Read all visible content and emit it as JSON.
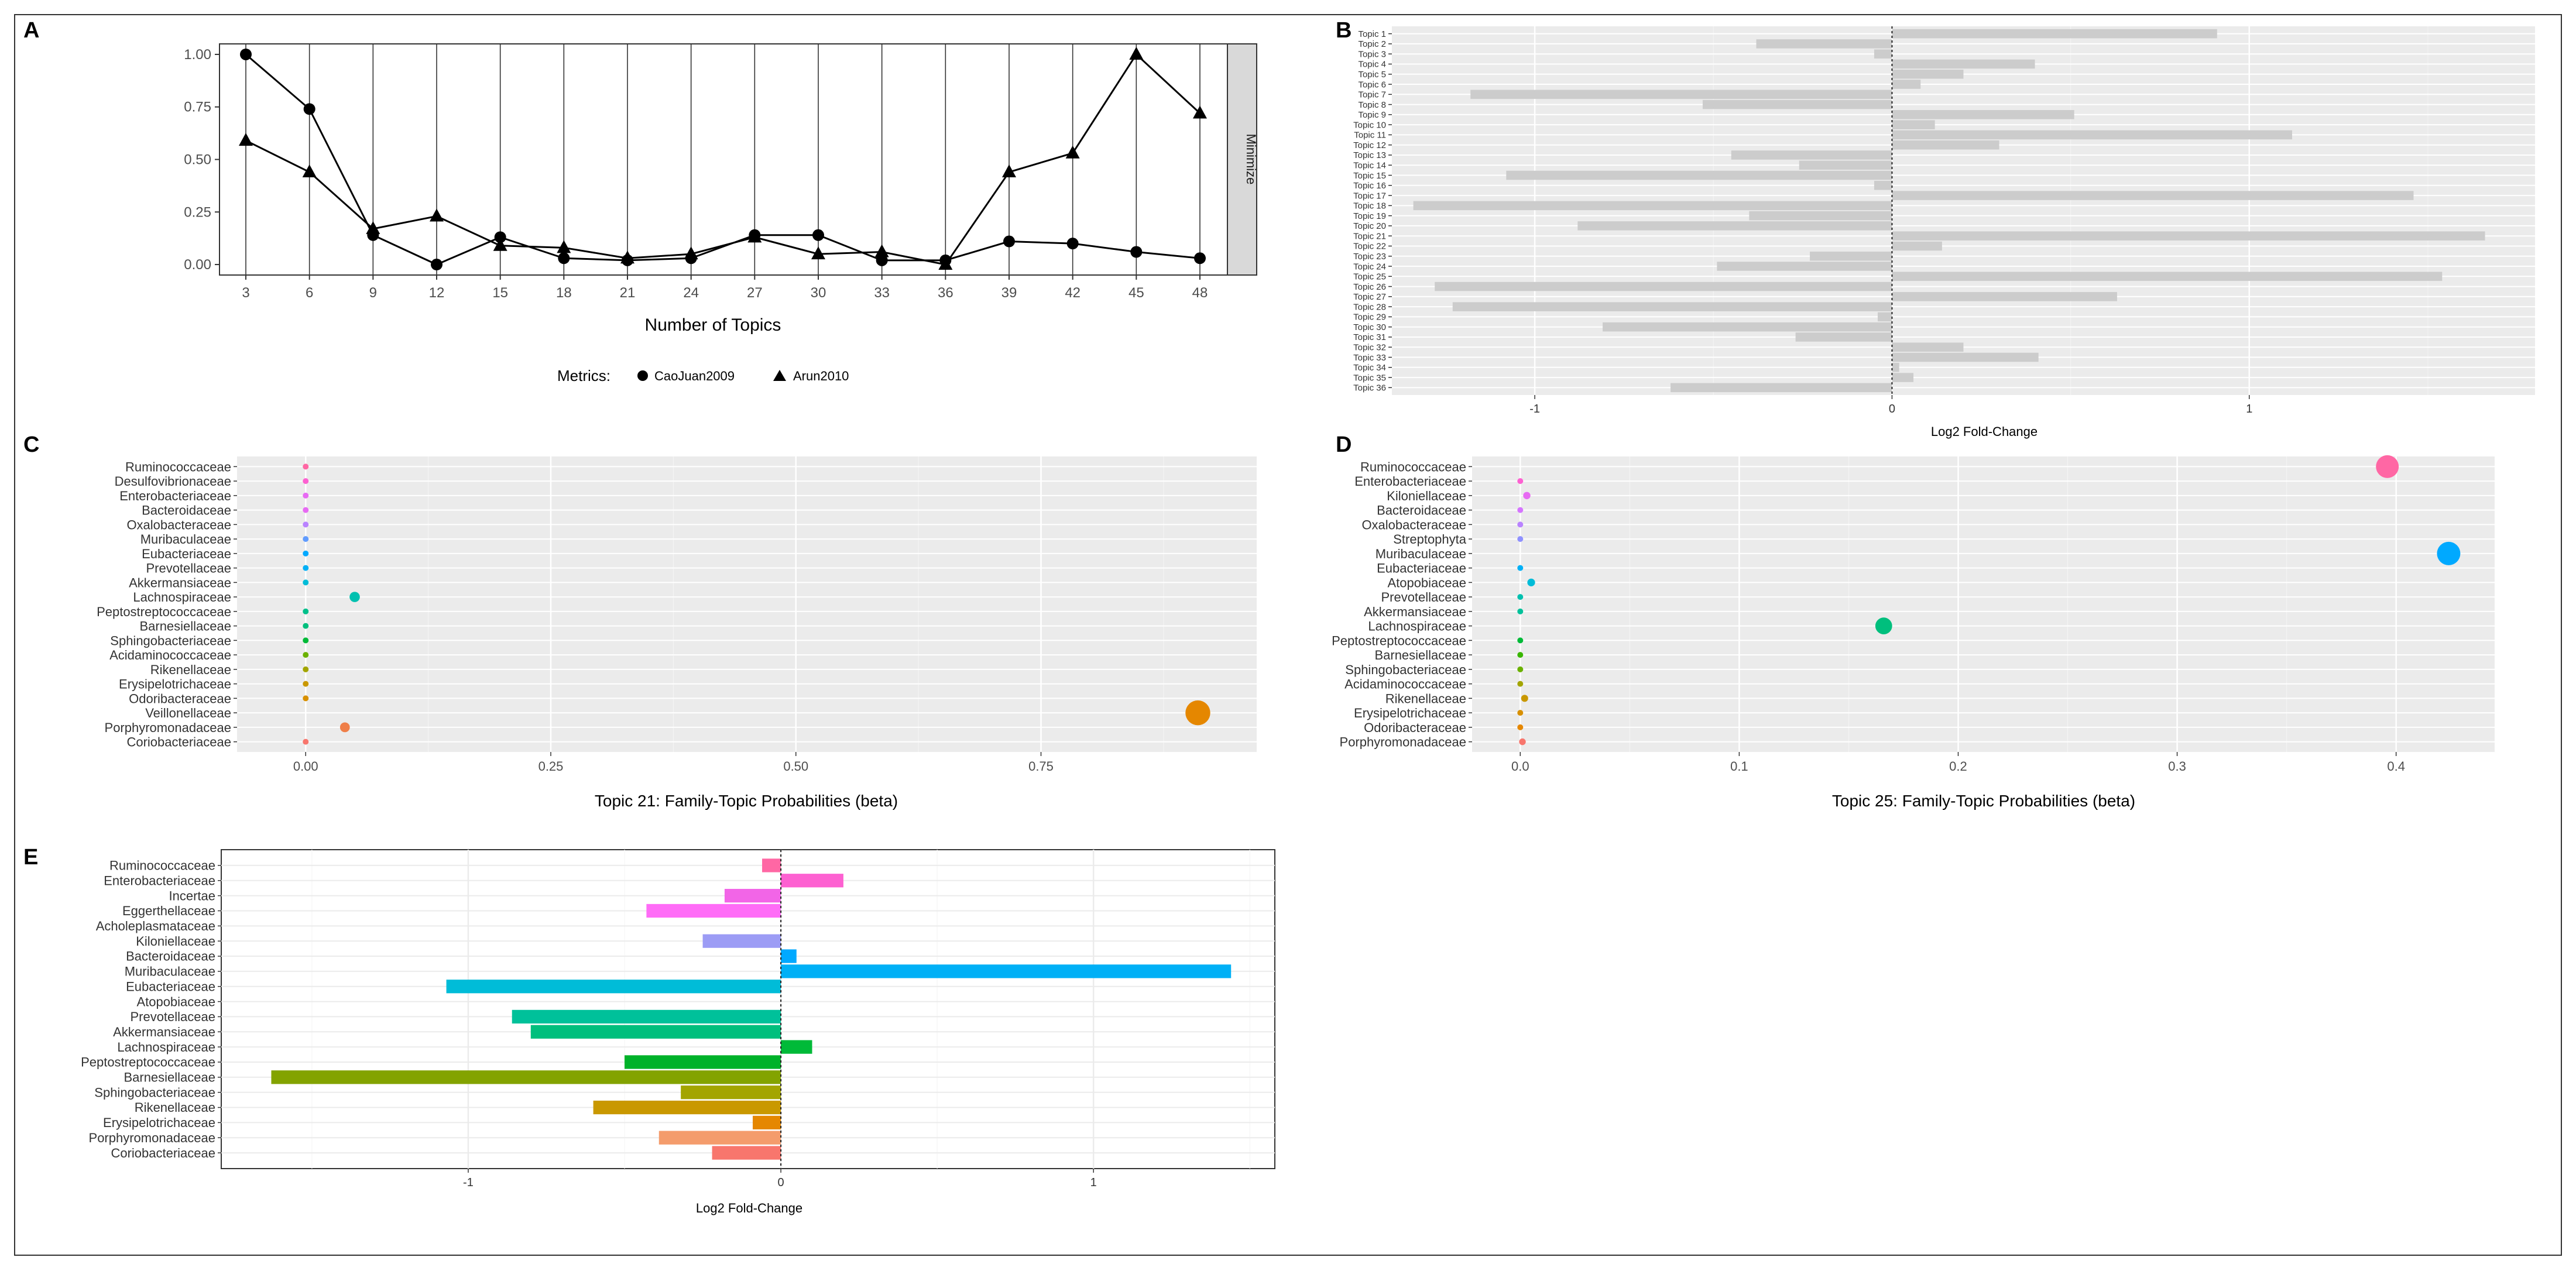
{
  "panel_letters": [
    "A",
    "B",
    "C",
    "D",
    "E"
  ],
  "palette": [
    "#f8766d",
    "#e58700",
    "#c99800",
    "#a3a500",
    "#6bb100",
    "#00ba38",
    "#00bf7d",
    "#00c0af",
    "#00bcd8",
    "#00b0f6",
    "#619cff",
    "#b983ff",
    "#e76bf3",
    "#fd61d1",
    "#ff67a4"
  ],
  "chart_data": [
    {
      "id": "A",
      "type": "line",
      "title": "",
      "xlabel": "Number of Topics",
      "ylabel": "",
      "x": [
        3,
        6,
        9,
        12,
        15,
        18,
        21,
        24,
        27,
        30,
        33,
        36,
        39,
        42,
        45,
        48
      ],
      "ylim": [
        -0.05,
        1.05
      ],
      "yticks": [
        "0.00",
        "0.25",
        "0.50",
        "0.75",
        "1.00"
      ],
      "strip_label": "Minimize",
      "legend_title": "Metrics:",
      "legend_position": "bottom",
      "series": [
        {
          "name": "CaoJuan2009",
          "marker": "circle",
          "values": [
            1.0,
            0.74,
            0.14,
            0.0,
            0.13,
            0.03,
            0.02,
            0.03,
            0.14,
            0.14,
            0.02,
            0.02,
            0.11,
            0.1,
            0.06,
            0.03
          ]
        },
        {
          "name": "Arun2010",
          "marker": "triangle",
          "values": [
            0.59,
            0.44,
            0.17,
            0.23,
            0.09,
            0.08,
            0.03,
            0.05,
            0.13,
            0.05,
            0.06,
            0.0,
            0.44,
            0.53,
            1.0,
            0.72
          ]
        }
      ]
    },
    {
      "id": "B",
      "type": "bar",
      "orientation": "horizontal",
      "xlabel": "Log2 Fold-Change",
      "ylabel": "",
      "xlim": [
        -1.4,
        1.8
      ],
      "xticks": [
        "-1",
        "0",
        "1"
      ],
      "categories": [
        "Topic 1",
        "Topic 2",
        "Topic 3",
        "Topic 4",
        "Topic 5",
        "Topic 6",
        "Topic 7",
        "Topic 8",
        "Topic 9",
        "Topic 10",
        "Topic 11",
        "Topic 12",
        "Topic 13",
        "Topic 14",
        "Topic 15",
        "Topic 16",
        "Topic 17",
        "Topic 18",
        "Topic 19",
        "Topic 20",
        "Topic 21",
        "Topic 22",
        "Topic 23",
        "Topic 24",
        "Topic 25",
        "Topic 26",
        "Topic 27",
        "Topic 28",
        "Topic 29",
        "Topic 30",
        "Topic 31",
        "Topic 32",
        "Topic 33",
        "Topic 34",
        "Topic 35",
        "Topic 36"
      ],
      "values": [
        0.91,
        -0.38,
        -0.05,
        0.4,
        0.2,
        0.08,
        -1.18,
        -0.53,
        0.51,
        0.12,
        1.12,
        0.3,
        -0.45,
        -0.26,
        -1.08,
        -0.05,
        1.46,
        -1.34,
        -0.4,
        -0.88,
        1.66,
        0.14,
        -0.23,
        -0.49,
        1.54,
        -1.28,
        0.63,
        -1.23,
        -0.04,
        -0.81,
        -0.27,
        0.2,
        0.41,
        0.02,
        0.06,
        -0.62
      ]
    },
    {
      "id": "C",
      "type": "scatter",
      "xlabel": "Topic 21: Family-Topic Probabilities (beta)",
      "ylabel": "",
      "xlim": [
        -0.07,
        0.97
      ],
      "xticks": [
        0.0,
        0.25,
        0.5,
        0.75
      ],
      "xtick_labels": [
        "0.00",
        "0.25",
        "0.50",
        "0.75"
      ],
      "categories": [
        "Ruminococcaceae",
        "Desulfovibrionaceae",
        "Enterobacteriaceae",
        "Bacteroidaceae",
        "Oxalobacteraceae",
        "Muribaculaceae",
        "Eubacteriaceae",
        "Prevotellaceae",
        "Akkermansiaceae",
        "Lachnospiraceae",
        "Peptostreptococcaceae",
        "Barnesiellaceae",
        "Sphingobacteriaceae",
        "Acidaminococcaceae",
        "Rikenellaceae",
        "Erysipelotrichaceae",
        "Odoribacteraceae",
        "Veillonellaceae",
        "Porphyromonadaceae",
        "Coriobacteriaceae"
      ],
      "values": [
        0.0,
        0.0,
        0.0,
        0.0,
        0.0,
        0.0,
        0.0,
        0.0,
        0.0,
        0.05,
        0.0,
        0.0,
        0.0,
        0.0,
        0.0,
        0.0,
        0.0,
        0.91,
        0.04,
        0.0
      ],
      "colors": [
        "#ff67a4",
        "#fd61d1",
        "#e76bf3",
        "#e76bf3",
        "#b983ff",
        "#619cff",
        "#00a9ff",
        "#00b0f6",
        "#00bcd8",
        "#00c0af",
        "#00c08b",
        "#00bf7d",
        "#00ba38",
        "#6bb100",
        "#a3a500",
        "#c99800",
        "#d89000",
        "#e58700",
        "#ef7f49",
        "#f8766d"
      ]
    },
    {
      "id": "D",
      "type": "scatter",
      "xlabel": "Topic 25: Family-Topic Probabilities (beta)",
      "ylabel": "",
      "xlim": [
        -0.022,
        0.445
      ],
      "xticks": [
        0.0,
        0.1,
        0.2,
        0.3,
        0.4
      ],
      "xtick_labels": [
        "0.0",
        "0.1",
        "0.2",
        "0.3",
        "0.4"
      ],
      "categories": [
        "Ruminococcaceae",
        "Enterobacteriaceae",
        "Kiloniellaceae",
        "Bacteroidaceae",
        "Oxalobacteraceae",
        "Streptophyta",
        "Muribaculaceae",
        "Eubacteriaceae",
        "Atopobiaceae",
        "Prevotellaceae",
        "Akkermansiaceae",
        "Lachnospiraceae",
        "Peptostreptococcaceae",
        "Barnesiellaceae",
        "Sphingobacteriaceae",
        "Acidaminococcaceae",
        "Rikenellaceae",
        "Erysipelotrichaceae",
        "Odoribacteraceae",
        "Porphyromonadaceae"
      ],
      "values": [
        0.396,
        0.0,
        0.003,
        0.0,
        0.0,
        0.0,
        0.424,
        0.0,
        0.005,
        0.0,
        0.0,
        0.166,
        0.0,
        0.0,
        0.0,
        0.0,
        0.002,
        0.0,
        0.0,
        0.001
      ],
      "colors": [
        "#ff67a4",
        "#fd61d1",
        "#e76bf3",
        "#d575fe",
        "#b983ff",
        "#8f91ff",
        "#00a9ff",
        "#00b0f6",
        "#00bcd8",
        "#00c0af",
        "#00c19a",
        "#00bf7d",
        "#00ba38",
        "#39b600",
        "#6bb100",
        "#a3a500",
        "#c99800",
        "#d89000",
        "#e58700",
        "#f8766d"
      ]
    },
    {
      "id": "E",
      "type": "bar",
      "orientation": "horizontal",
      "xlabel": "Log2 Fold-Change",
      "ylabel": "",
      "xlim": [
        -1.79,
        1.58
      ],
      "xticks": [
        "-1",
        "0",
        "1"
      ],
      "categories": [
        "Ruminococcaceae",
        "Enterobacteriaceae",
        "Incertae",
        "Eggerthellaceae",
        "Acholeplasmataceae",
        "Kiloniellaceae",
        "Bacteroidaceae",
        "Muribaculaceae",
        "Eubacteriaceae",
        "Atopobiaceae",
        "Prevotellaceae",
        "Akkermansiaceae",
        "Lachnospiraceae",
        "Peptostreptococcaceae",
        "Barnesiellaceae",
        "Sphingobacteriaceae",
        "Rikenellaceae",
        "Erysipelotrichaceae",
        "Porphyromonadaceae",
        "Coriobacteriaceae"
      ],
      "values": [
        -0.06,
        0.2,
        -0.18,
        -0.43,
        0.0,
        -0.25,
        0.05,
        1.44,
        -1.07,
        0.0,
        -0.86,
        -0.8,
        0.1,
        -0.5,
        -1.63,
        -0.32,
        -0.6,
        -0.09,
        -0.39,
        -0.22
      ],
      "colors": [
        "#ff67a4",
        "#fd61d1",
        "#f265e7",
        "#ff6cf7",
        "#d575fe",
        "#9c9cf5",
        "#00a9ff",
        "#00b0f6",
        "#00bcd8",
        "#00c0af",
        "#00c19a",
        "#00bf7d",
        "#00ba38",
        "#00b22a",
        "#83a300",
        "#a3a500",
        "#c99800",
        "#e58700",
        "#f49c6c",
        "#f8766d"
      ]
    }
  ]
}
